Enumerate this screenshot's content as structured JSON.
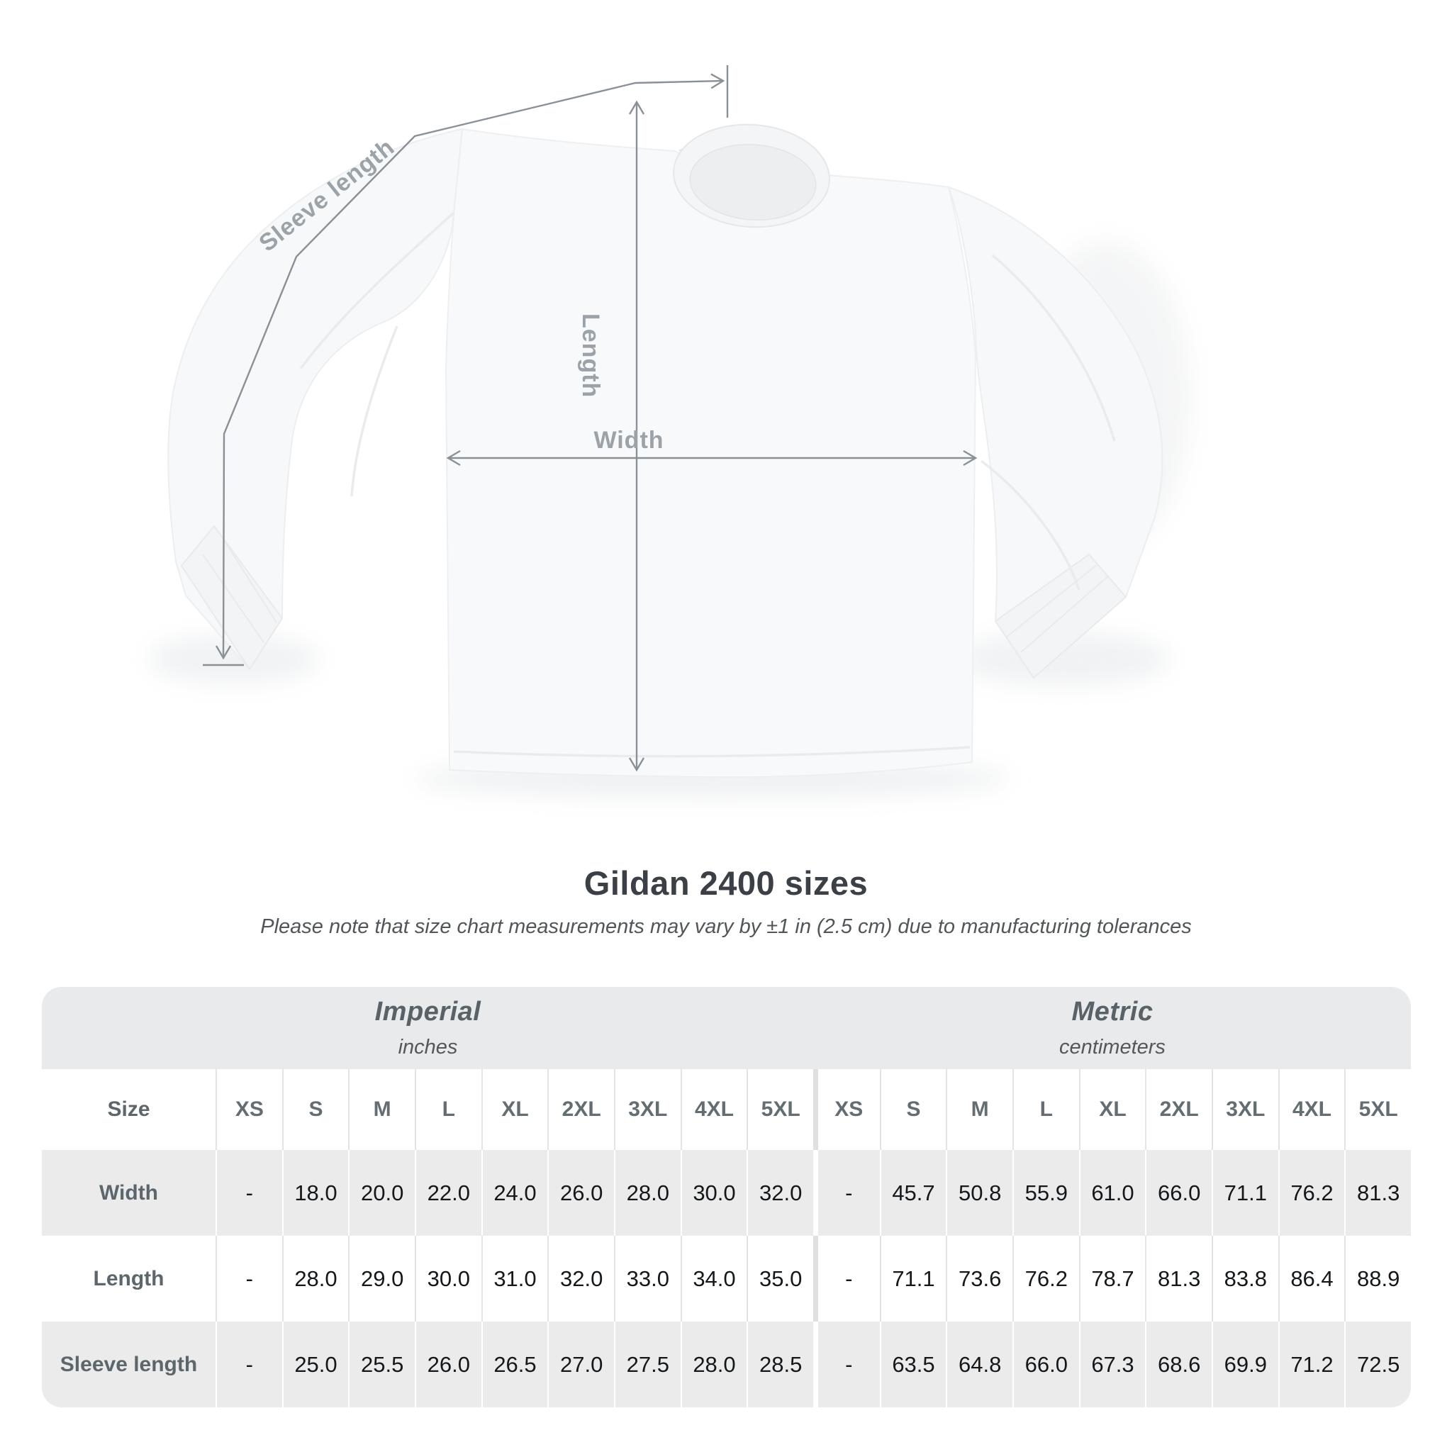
{
  "page": {
    "background": "#ffffff"
  },
  "diagram": {
    "labels": {
      "sleeve_length": "Sleeve length",
      "length": "Length",
      "width": "Width"
    },
    "line_color": "#8a9097",
    "label_color": "#9ba2a8"
  },
  "heading": {
    "title": "Gildan 2400 sizes",
    "subtitle": "Please note that size chart measurements may vary by ±1 in (2.5 cm) due to manufacturing tolerances"
  },
  "table": {
    "unit_groups": [
      {
        "label": "Imperial",
        "sublabel": "inches"
      },
      {
        "label": "Metric",
        "sublabel": "centimeters"
      }
    ],
    "size_header": {
      "label": "Size",
      "sizes": [
        "XS",
        "S",
        "M",
        "L",
        "XL",
        "2XL",
        "3XL",
        "4XL",
        "5XL",
        "XS",
        "S",
        "M",
        "L",
        "XL",
        "2XL",
        "3XL",
        "4XL",
        "5XL"
      ]
    },
    "rows": [
      {
        "label": "Width",
        "values": [
          "-",
          "18.0",
          "20.0",
          "22.0",
          "24.0",
          "26.0",
          "28.0",
          "30.0",
          "32.0",
          "-",
          "45.7",
          "50.8",
          "55.9",
          "61.0",
          "66.0",
          "71.1",
          "76.2",
          "81.3"
        ]
      },
      {
        "label": "Length",
        "values": [
          "-",
          "28.0",
          "29.0",
          "30.0",
          "31.0",
          "32.0",
          "33.0",
          "34.0",
          "35.0",
          "-",
          "71.1",
          "73.6",
          "76.2",
          "78.7",
          "81.3",
          "83.8",
          "86.4",
          "88.9"
        ]
      },
      {
        "label": "Sleeve length",
        "values": [
          "-",
          "25.0",
          "25.5",
          "26.0",
          "26.5",
          "27.0",
          "27.5",
          "28.0",
          "28.5",
          "-",
          "63.5",
          "64.8",
          "66.0",
          "67.3",
          "68.6",
          "69.9",
          "71.2",
          "72.5"
        ]
      }
    ]
  },
  "chart_data": {
    "type": "table",
    "title": "Gildan 2400 sizes",
    "note": "Please note that size chart measurements may vary by ±1 in (2.5 cm) due to manufacturing tolerances",
    "units": {
      "imperial": "inches",
      "metric": "centimeters"
    },
    "sizes": [
      "XS",
      "S",
      "M",
      "L",
      "XL",
      "2XL",
      "3XL",
      "4XL",
      "5XL"
    ],
    "measurements": [
      {
        "name": "Width",
        "imperial": [
          null,
          18.0,
          20.0,
          22.0,
          24.0,
          26.0,
          28.0,
          30.0,
          32.0
        ],
        "metric": [
          null,
          45.7,
          50.8,
          55.9,
          61.0,
          66.0,
          71.1,
          76.2,
          81.3
        ]
      },
      {
        "name": "Length",
        "imperial": [
          null,
          28.0,
          29.0,
          30.0,
          31.0,
          32.0,
          33.0,
          34.0,
          35.0
        ],
        "metric": [
          null,
          71.1,
          73.6,
          76.2,
          78.7,
          81.3,
          83.8,
          86.4,
          88.9
        ]
      },
      {
        "name": "Sleeve length",
        "imperial": [
          null,
          25.0,
          25.5,
          26.0,
          26.5,
          27.0,
          27.5,
          28.0,
          28.5
        ],
        "metric": [
          null,
          63.5,
          64.8,
          66.0,
          67.3,
          68.6,
          69.9,
          71.2,
          72.5
        ]
      }
    ],
    "diagram_measurement_labels": [
      "Sleeve length",
      "Length",
      "Width"
    ]
  }
}
